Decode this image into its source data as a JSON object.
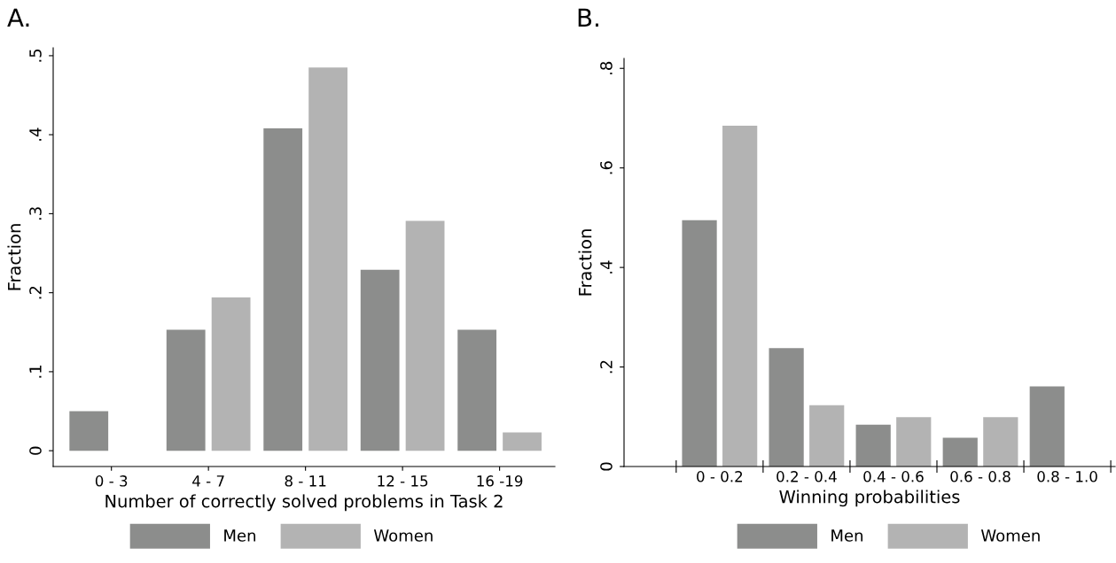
{
  "chart_data": [
    {
      "type": "bar",
      "title": "A.",
      "xlabel": "Number of correctly solved problems in Task 2",
      "ylabel": "Fraction",
      "categories": [
        "0 - 3",
        "4 - 7",
        "8 - 11",
        "12 - 15",
        "16 -19"
      ],
      "series": [
        {
          "name": "Men",
          "color": "#8c8d8c",
          "values": [
            0.05,
            0.153,
            0.408,
            0.229,
            0.153
          ]
        },
        {
          "name": "Women",
          "color": "#b3b3b3",
          "values": [
            0,
            0.194,
            0.485,
            0.291,
            0.023
          ]
        }
      ],
      "ylim": [
        -0.02,
        0.51
      ],
      "yticks": [
        {
          "value": 0,
          "label": "0"
        },
        {
          "value": 0.1,
          "label": ".1"
        },
        {
          "value": 0.2,
          "label": ".2"
        },
        {
          "value": 0.3,
          "label": ".3"
        },
        {
          "value": 0.4,
          "label": ".4"
        },
        {
          "value": 0.5,
          "label": ".5"
        }
      ],
      "grid": false,
      "legend": "bottom"
    },
    {
      "type": "bar",
      "title": "B.",
      "xlabel": "Winning probabilities",
      "ylabel": "Fraction",
      "categories": [
        "0 - 0.2",
        "0.2 - 0.4",
        "0.4 - 0.6",
        "0.6 - 0.8",
        "0.8 - 1.0"
      ],
      "series": [
        {
          "name": "Men",
          "color": "#8c8d8c",
          "values": [
            0.495,
            0.238,
            0.084,
            0.058,
            0.161
          ]
        },
        {
          "name": "Women",
          "color": "#b3b3b3",
          "values": [
            0.685,
            0.123,
            0.099,
            0.099,
            0
          ]
        }
      ],
      "ylim": [
        0,
        0.82
      ],
      "yticks": [
        {
          "value": 0,
          "label": "0"
        },
        {
          "value": 0.2,
          "label": ".2"
        },
        {
          "value": 0.4,
          "label": ".4"
        },
        {
          "value": 0.6,
          "label": ".6"
        },
        {
          "value": 0.8,
          "label": ".8"
        }
      ],
      "grid": false,
      "legend": "bottom"
    }
  ]
}
